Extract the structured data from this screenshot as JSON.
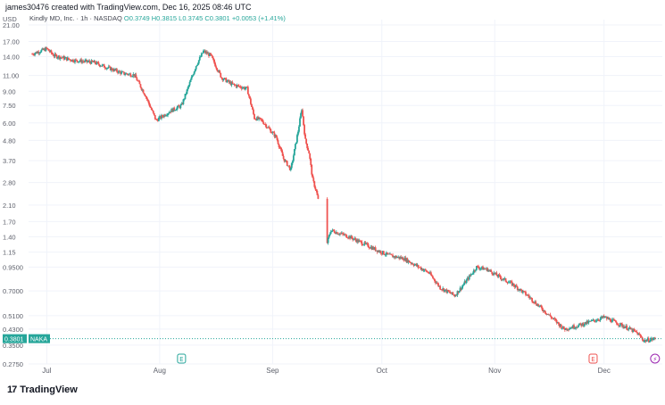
{
  "header": {
    "credit": "james30476 created with TradingView.com, Dec 16, 2025 08:46 UTC",
    "legend_symbol": "Kindly MD, Inc. · 1h · NASDAQ",
    "legend_values": "O0.3749 H0.3815 L0.3745 C0.3801",
    "legend_change": "+0.0053 (+1.41%)"
  },
  "brand": {
    "logo": "17",
    "name": "TradingView"
  },
  "chart_data": {
    "type": "candlestick",
    "currency_label": "USD",
    "scale": "log",
    "y_ticks": [
      "21.00",
      "17.00",
      "14.00",
      "11.00",
      "9.00",
      "7.50",
      "6.00",
      "4.80",
      "3.70",
      "2.80",
      "2.10",
      "1.70",
      "1.40",
      "1.15",
      "0.9500",
      "0.7000",
      "0.5100",
      "0.4300",
      "0.3500",
      "0.2750"
    ],
    "x_ticks": [
      "Jul",
      "Aug",
      "Sep",
      "Oct",
      "Nov",
      "Dec"
    ],
    "last_price": "0.3801",
    "last_symbol": "NAKA",
    "up_color": "#26a69a",
    "down_color": "#ef5350",
    "price_path": [
      {
        "date": "2025-06-27",
        "close": 14.5
      },
      {
        "date": "2025-07-01",
        "close": 15.5
      },
      {
        "date": "2025-07-03",
        "close": 14.2
      },
      {
        "date": "2025-07-08",
        "close": 13.4
      },
      {
        "date": "2025-07-14",
        "close": 13.0
      },
      {
        "date": "2025-07-18",
        "close": 12.1
      },
      {
        "date": "2025-07-22",
        "close": 11.3
      },
      {
        "date": "2025-07-25",
        "close": 11.1
      },
      {
        "date": "2025-07-28",
        "close": 8.6
      },
      {
        "date": "2025-07-31",
        "close": 6.2
      },
      {
        "date": "2025-08-04",
        "close": 7.0
      },
      {
        "date": "2025-08-07",
        "close": 7.5
      },
      {
        "date": "2025-08-11",
        "close": 12.5
      },
      {
        "date": "2025-08-13",
        "close": 15.0
      },
      {
        "date": "2025-08-15",
        "close": 14.2
      },
      {
        "date": "2025-08-18",
        "close": 10.7
      },
      {
        "date": "2025-08-21",
        "close": 9.8
      },
      {
        "date": "2025-08-25",
        "close": 9.3
      },
      {
        "date": "2025-08-27",
        "close": 6.4
      },
      {
        "date": "2025-08-29",
        "close": 6.2
      },
      {
        "date": "2025-09-02",
        "close": 5.0
      },
      {
        "date": "2025-09-04",
        "close": 3.8
      },
      {
        "date": "2025-09-06",
        "close": 3.3
      },
      {
        "date": "2025-09-08",
        "close": 5.4
      },
      {
        "date": "2025-09-09",
        "close": 7.2
      },
      {
        "date": "2025-09-10",
        "close": 4.8
      },
      {
        "date": "2025-09-11",
        "close": 4.1
      },
      {
        "date": "2025-09-12",
        "close": 2.9
      },
      {
        "date": "2025-09-13",
        "close": 2.5
      },
      {
        "date": "2025-09-16",
        "close": 1.3
      },
      {
        "date": "2025-09-17",
        "close": 1.52
      },
      {
        "date": "2025-09-22",
        "close": 1.4
      },
      {
        "date": "2025-09-26",
        "close": 1.28
      },
      {
        "date": "2025-09-30",
        "close": 1.17
      },
      {
        "date": "2025-10-03",
        "close": 1.1
      },
      {
        "date": "2025-10-07",
        "close": 1.06
      },
      {
        "date": "2025-10-10",
        "close": 0.98
      },
      {
        "date": "2025-10-14",
        "close": 0.88
      },
      {
        "date": "2025-10-17",
        "close": 0.73
      },
      {
        "date": "2025-10-21",
        "close": 0.66
      },
      {
        "date": "2025-10-23",
        "close": 0.74
      },
      {
        "date": "2025-10-27",
        "close": 0.95
      },
      {
        "date": "2025-10-30",
        "close": 0.92
      },
      {
        "date": "2025-11-03",
        "close": 0.82
      },
      {
        "date": "2025-11-06",
        "close": 0.76
      },
      {
        "date": "2025-11-10",
        "close": 0.66
      },
      {
        "date": "2025-11-13",
        "close": 0.58
      },
      {
        "date": "2025-11-17",
        "close": 0.49
      },
      {
        "date": "2025-11-20",
        "close": 0.43
      },
      {
        "date": "2025-11-24",
        "close": 0.45
      },
      {
        "date": "2025-11-27",
        "close": 0.47
      },
      {
        "date": "2025-12-01",
        "close": 0.5
      },
      {
        "date": "2025-12-04",
        "close": 0.47
      },
      {
        "date": "2025-12-08",
        "close": 0.43
      },
      {
        "date": "2025-12-10",
        "close": 0.41
      },
      {
        "date": "2025-12-12",
        "close": 0.37
      },
      {
        "date": "2025-12-15",
        "close": 0.38
      }
    ],
    "events": [
      {
        "date": "2025-08-07",
        "kind": "earnings",
        "glyph": "E",
        "color": "#26a69a"
      },
      {
        "date": "2025-11-28",
        "kind": "dividend",
        "glyph": "E",
        "color": "#ef5350"
      },
      {
        "date": "2025-12-15",
        "kind": "split",
        "glyph": "⚡",
        "color": "#9c27b0"
      }
    ]
  }
}
